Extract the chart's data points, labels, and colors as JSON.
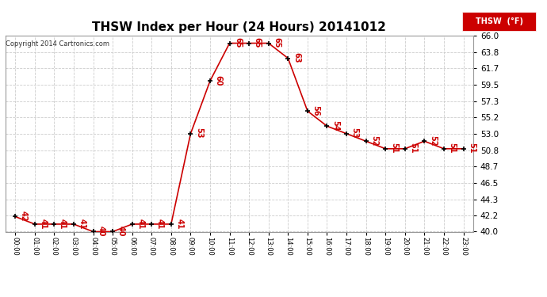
{
  "title": "THSW Index per Hour (24 Hours) 20141012",
  "copyright": "Copyright 2014 Cartronics.com",
  "legend_label": "THSW  (°F)",
  "hours": [
    0,
    1,
    2,
    3,
    4,
    5,
    6,
    7,
    8,
    9,
    10,
    11,
    12,
    13,
    14,
    15,
    16,
    17,
    18,
    19,
    20,
    21,
    22,
    23
  ],
  "values": [
    42,
    41,
    41,
    41,
    40,
    40,
    41,
    41,
    41,
    53,
    60,
    65,
    65,
    65,
    63,
    56,
    54,
    53,
    52,
    51,
    51,
    52,
    51,
    51
  ],
  "ylim": [
    40.0,
    66.0
  ],
  "yticks": [
    40.0,
    42.2,
    44.3,
    46.5,
    48.7,
    50.8,
    53.0,
    55.2,
    57.3,
    59.5,
    61.7,
    63.8,
    66.0
  ],
  "line_color": "#cc0000",
  "marker_color": "#000000",
  "background_color": "#ffffff",
  "grid_color": "#cccccc",
  "title_fontsize": 11,
  "label_fontsize": 7,
  "legend_bg": "#cc0000",
  "legend_text_color": "#ffffff"
}
